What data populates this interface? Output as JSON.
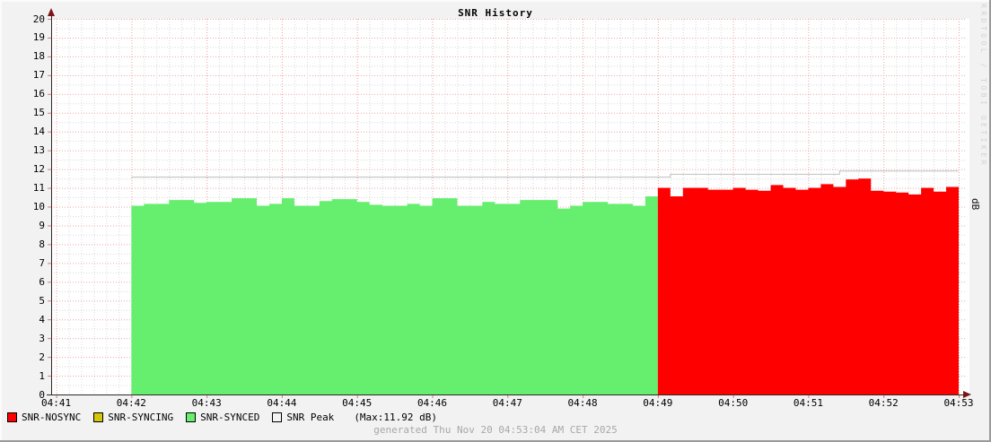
{
  "title": "SNR History",
  "watermark": "RRDTOOL / TOBI OETIKER",
  "right_axis_label": "dB",
  "footer": "generated Thu Nov 20 04:53:04 AM CET 2025",
  "legend_note": "(Max:11.92 dB)",
  "legend": [
    {
      "label": "SNR-NOSYNC",
      "color": "#ff0000"
    },
    {
      "label": "SNR-SYNCING",
      "color": "#d2c50a"
    },
    {
      "label": "SNR-SYNCED",
      "color": "#66ee6e"
    },
    {
      "label": "SNR Peak",
      "color": "#f4f4f4"
    }
  ],
  "colors": {
    "grid_major": "#f0a0a0",
    "grid_minor": "#d8d8d8",
    "tick": "#e07878",
    "axis": "#2a2a2a",
    "arrow": "#7c1616",
    "peak_line": "#c0c0c0"
  },
  "chart_data": {
    "type": "area",
    "title": "SNR History",
    "ylabel_right": "dB",
    "ylim": [
      0,
      20
    ],
    "y_tick_step": 1,
    "y_ticks": [
      0,
      1,
      2,
      3,
      4,
      5,
      6,
      7,
      8,
      9,
      10,
      11,
      12,
      13,
      14,
      15,
      16,
      17,
      18,
      19,
      20
    ],
    "x_ticks": [
      "04:41",
      "04:42",
      "04:43",
      "04:44",
      "04:45",
      "04:46",
      "04:47",
      "04:48",
      "04:49",
      "04:50",
      "04:51",
      "04:52",
      "04:53"
    ],
    "time_start": "04:40:56",
    "time_end": "04:53:00",
    "grid": true,
    "legend_position": "bottom",
    "series": [
      {
        "name": "SNR-SYNCED",
        "color": "#66ee6e",
        "start": "04:42:00",
        "step_sec": 10,
        "unit": "dB",
        "values": [
          10.05,
          10.15,
          10.15,
          10.35,
          10.35,
          10.2,
          10.25,
          10.25,
          10.45,
          10.45,
          10.05,
          10.15,
          10.45,
          10.05,
          10.05,
          10.3,
          10.4,
          10.4,
          10.25,
          10.1,
          10.05,
          10.05,
          10.15,
          10.05,
          10.45,
          10.45,
          10.05,
          10.05,
          10.25,
          10.15,
          10.15,
          10.35,
          10.35,
          10.35,
          9.9,
          10.05,
          10.25,
          10.25,
          10.15,
          10.15,
          10.05,
          10.55
        ]
      },
      {
        "name": "SNR-NOSYNC",
        "color": "#ff0000",
        "start": "04:49:00",
        "step_sec": 10,
        "unit": "dB",
        "values": [
          11.0,
          10.55,
          11.0,
          11.0,
          10.9,
          10.9,
          11.0,
          10.9,
          10.85,
          11.15,
          11.0,
          10.9,
          11.0,
          11.2,
          11.05,
          11.45,
          11.5,
          10.85,
          10.8,
          10.75,
          10.65,
          11.0,
          10.8,
          11.05
        ]
      }
    ],
    "peak_line": {
      "name": "SNR Peak",
      "color": "#c0c0c0",
      "max": 11.92,
      "segments": [
        {
          "from": "04:42:00",
          "to": "04:49:10",
          "value": 11.6
        },
        {
          "from": "04:49:10",
          "to": "04:51:25",
          "value": 11.75
        },
        {
          "from": "04:51:25",
          "to": "04:53:00",
          "value": 11.92
        }
      ]
    }
  }
}
